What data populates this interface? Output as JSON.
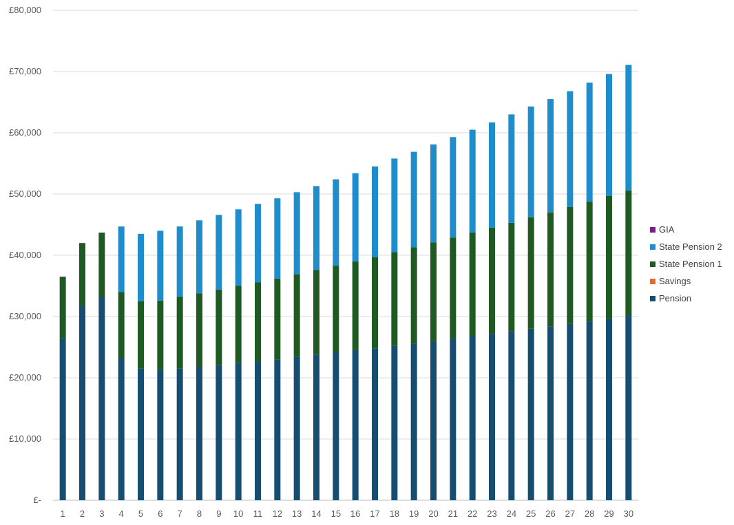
{
  "chart_data": {
    "type": "bar",
    "stacked": true,
    "title": "",
    "xlabel": "",
    "ylabel": "",
    "categories": [
      "1",
      "2",
      "3",
      "4",
      "5",
      "6",
      "7",
      "8",
      "9",
      "10",
      "11",
      "12",
      "13",
      "14",
      "15",
      "16",
      "17",
      "18",
      "19",
      "20",
      "21",
      "22",
      "23",
      "24",
      "25",
      "26",
      "27",
      "28",
      "29",
      "30"
    ],
    "ylim": [
      0,
      80000
    ],
    "y_ticks": [
      0,
      10000,
      20000,
      30000,
      40000,
      50000,
      60000,
      70000,
      80000
    ],
    "y_tick_labels": [
      "£-",
      "£10,000",
      "£20,000",
      "£30,000",
      "£40,000",
      "£50,000",
      "£60,000",
      "£70,000",
      "£80,000"
    ],
    "grid": true,
    "legend_position": "right",
    "series": [
      {
        "name": "Pension",
        "color": "#154e70",
        "values": [
          26500,
          31800,
          33200,
          23200,
          21500,
          21300,
          21500,
          21800,
          22100,
          22400,
          22700,
          23000,
          23400,
          23800,
          24100,
          24500,
          24800,
          25200,
          25600,
          26000,
          26400,
          26800,
          27200,
          27600,
          28000,
          28400,
          28800,
          29200,
          29600,
          30100
        ]
      },
      {
        "name": "Savings",
        "color": "#e66c2c",
        "values": [
          0,
          0,
          0,
          0,
          0,
          0,
          0,
          0,
          0,
          0,
          0,
          0,
          0,
          0,
          0,
          0,
          0,
          0,
          0,
          0,
          0,
          0,
          0,
          0,
          0,
          0,
          0,
          0,
          0,
          0
        ]
      },
      {
        "name": "State Pension 1",
        "color": "#1e5a22",
        "values": [
          10000,
          10200,
          10500,
          10800,
          11000,
          11300,
          11700,
          12000,
          12300,
          12600,
          12900,
          13200,
          13500,
          13800,
          14200,
          14500,
          14900,
          15300,
          15700,
          16100,
          16500,
          16900,
          17300,
          17700,
          18200,
          18600,
          19100,
          19600,
          20100,
          20500
        ]
      },
      {
        "name": "State Pension 2",
        "color": "#1f8dcc",
        "values": [
          0,
          0,
          0,
          10700,
          11000,
          11400,
          11500,
          11900,
          12200,
          12500,
          12800,
          13100,
          13400,
          13700,
          14100,
          14400,
          14800,
          15300,
          15600,
          16000,
          16400,
          16800,
          17200,
          17700,
          18100,
          18500,
          18900,
          19400,
          19900,
          20500
        ]
      },
      {
        "name": "GIA",
        "color": "#7a1f86",
        "values": [
          0,
          0,
          0,
          0,
          0,
          0,
          0,
          0,
          0,
          0,
          0,
          0,
          0,
          0,
          0,
          0,
          0,
          0,
          0,
          0,
          0,
          0,
          0,
          0,
          0,
          0,
          0,
          0,
          0,
          0
        ]
      }
    ],
    "legend_order": [
      "GIA",
      "State Pension 2",
      "State Pension 1",
      "Savings",
      "Pension"
    ]
  }
}
